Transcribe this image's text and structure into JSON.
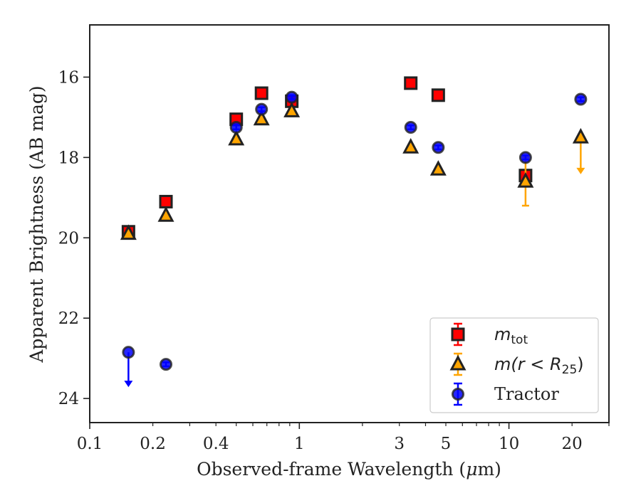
{
  "chart_data": {
    "type": "scatter",
    "title": "",
    "xlabel_main": "Observed-frame Wavelength (",
    "xlabel_unit": "μ",
    "xlabel_end": "m)",
    "ylabel": "Apparent Brightness (AB mag)",
    "xscale": "log",
    "xlim": [
      0.1,
      30
    ],
    "ylim": [
      24.6,
      14.7
    ],
    "y_inverted": true,
    "grid": false,
    "legend_position": "lower-right",
    "x_ticks": [
      {
        "value": 0.1,
        "label": "0.1"
      },
      {
        "value": 0.2,
        "label": "0.2"
      },
      {
        "value": 0.4,
        "label": "0.4"
      },
      {
        "value": 1,
        "label": "1"
      },
      {
        "value": 3,
        "label": "3"
      },
      {
        "value": 5,
        "label": "5"
      },
      {
        "value": 10,
        "label": "10"
      },
      {
        "value": 20,
        "label": "20"
      }
    ],
    "y_ticks": [
      {
        "value": 16,
        "label": "16"
      },
      {
        "value": 18,
        "label": "18"
      },
      {
        "value": 20,
        "label": "20"
      },
      {
        "value": 22,
        "label": "22"
      },
      {
        "value": 24,
        "label": "24"
      }
    ],
    "series": [
      {
        "key": "mtot",
        "legend_main": "m",
        "legend_sub": "tot",
        "marker": "square",
        "color": "#ff0000",
        "edge_color": "#222222",
        "points": [
          {
            "x": 0.153,
            "y": 19.85,
            "err": 0.08
          },
          {
            "x": 0.231,
            "y": 19.1,
            "err": 0.05
          },
          {
            "x": 0.5,
            "y": 17.05,
            "err": 0.05
          },
          {
            "x": 0.66,
            "y": 16.4,
            "err": 0.05
          },
          {
            "x": 0.92,
            "y": 16.6,
            "err": 0.05
          },
          {
            "x": 3.4,
            "y": 16.15,
            "err": 0.05
          },
          {
            "x": 4.6,
            "y": 16.45,
            "err": 0.05
          },
          {
            "x": 12.0,
            "y": 18.45,
            "err": 0.1
          }
        ]
      },
      {
        "key": "mr25",
        "legend_main": "m(r < R",
        "legend_sub": "25",
        "legend_end": ")",
        "marker": "triangle",
        "color": "#ffa500",
        "edge_color": "#222222",
        "points": [
          {
            "x": 0.153,
            "y": 19.9,
            "err": 0.05
          },
          {
            "x": 0.231,
            "y": 19.45,
            "err": 0.05
          },
          {
            "x": 0.5,
            "y": 17.55,
            "err": 0.05
          },
          {
            "x": 0.66,
            "y": 17.05,
            "err": 0.05
          },
          {
            "x": 0.92,
            "y": 16.85,
            "err": 0.05
          },
          {
            "x": 3.4,
            "y": 17.75,
            "err": 0.05
          },
          {
            "x": 4.6,
            "y": 18.3,
            "err": 0.05
          },
          {
            "x": 12.0,
            "y": 18.6,
            "err": 0.6
          },
          {
            "x": 22.0,
            "y": 17.5,
            "upper_limit": true,
            "arrow_to": 18.4
          }
        ]
      },
      {
        "key": "tractor",
        "legend_main": "Tractor",
        "marker": "circle",
        "color": "#0000ff",
        "edge_color": "#222222",
        "points": [
          {
            "x": 0.153,
            "y": 22.85,
            "upper_limit": true,
            "arrow_to": 23.7
          },
          {
            "x": 0.231,
            "y": 23.15,
            "err": 0.05
          },
          {
            "x": 0.5,
            "y": 17.25,
            "err": 0.05
          },
          {
            "x": 0.66,
            "y": 16.8,
            "err": 0.05
          },
          {
            "x": 0.92,
            "y": 16.5,
            "err": 0.05
          },
          {
            "x": 3.4,
            "y": 17.25,
            "err": 0.05
          },
          {
            "x": 4.6,
            "y": 17.75,
            "err": 0.05
          },
          {
            "x": 12.0,
            "y": 18.0,
            "err": 0.05
          },
          {
            "x": 22.0,
            "y": 16.55,
            "err": 0.05
          }
        ]
      }
    ]
  }
}
